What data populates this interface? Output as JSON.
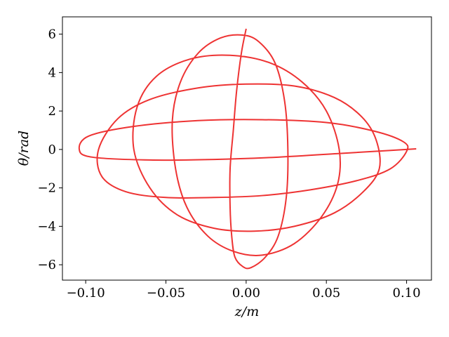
{
  "chart_data": {
    "type": "line",
    "title": "",
    "xlabel": "z/m",
    "ylabel": "θ/rad",
    "xlim": [
      -0.1145,
      0.1155
    ],
    "ylim": [
      -6.8,
      6.9
    ],
    "grid": false,
    "legend": "none",
    "series_color": "#ee3333",
    "x_ticks": [
      {
        "value": -0.1,
        "label": "−0.10"
      },
      {
        "value": -0.05,
        "label": "−0.05"
      },
      {
        "value": 0.0,
        "label": "0.00"
      },
      {
        "value": 0.05,
        "label": "0.05"
      },
      {
        "value": 0.1,
        "label": "0.10"
      }
    ],
    "y_ticks": [
      {
        "value": -6,
        "label": "−6"
      },
      {
        "value": -4,
        "label": "−4"
      },
      {
        "value": -2,
        "label": "−2"
      },
      {
        "value": 0,
        "label": "0"
      },
      {
        "value": 2,
        "label": "2"
      },
      {
        "value": 4,
        "label": "4"
      },
      {
        "value": 6,
        "label": "6"
      }
    ],
    "series": [
      {
        "x": [
          0.0,
          -0.003,
          -0.006,
          -0.008,
          -0.01,
          -0.01,
          -0.009,
          -0.007,
          -0.002,
          0.003,
          0.012,
          0.02,
          0.025,
          0.026,
          0.024,
          0.018,
          0.008,
          -0.002,
          -0.016,
          -0.03,
          -0.041,
          -0.046,
          -0.044,
          -0.037,
          -0.024,
          -0.008,
          0.01,
          0.03,
          0.047,
          0.057,
          0.058,
          0.05,
          0.035,
          0.015,
          -0.01,
          -0.035,
          -0.056,
          -0.068,
          -0.07,
          -0.06,
          -0.043,
          -0.02,
          0.005,
          0.03,
          0.055,
          0.073,
          0.083,
          0.081,
          0.072,
          0.055,
          0.03,
          0.0,
          -0.03,
          -0.06,
          -0.08,
          -0.092,
          -0.09,
          -0.075,
          -0.05,
          -0.02,
          0.01,
          0.04,
          0.07,
          0.09,
          0.1,
          0.098,
          0.08,
          0.05,
          0.01,
          -0.03,
          -0.07,
          -0.098,
          -0.104,
          -0.096,
          -0.06,
          -0.02,
          0.02,
          0.06,
          0.09,
          0.106
        ],
        "y": [
          6.28,
          5.0,
          3.0,
          1.0,
          -1.0,
          -3.0,
          -4.5,
          -5.6,
          -6.1,
          -6.15,
          -5.6,
          -4.5,
          -2.5,
          0.0,
          2.5,
          4.5,
          5.6,
          5.95,
          5.8,
          5.0,
          3.5,
          1.5,
          -1.0,
          -3.0,
          -4.5,
          -5.3,
          -5.5,
          -4.9,
          -3.5,
          -1.8,
          0.0,
          2.0,
          3.5,
          4.5,
          4.9,
          4.7,
          3.8,
          2.2,
          0.0,
          -2.0,
          -3.4,
          -4.1,
          -4.25,
          -4.0,
          -3.3,
          -2.2,
          -1.0,
          0.5,
          1.7,
          2.7,
          3.3,
          3.4,
          3.2,
          2.6,
          1.6,
          0.0,
          -1.4,
          -2.2,
          -2.5,
          -2.5,
          -2.4,
          -2.1,
          -1.6,
          -1.0,
          -0.1,
          0.4,
          0.95,
          1.4,
          1.55,
          1.5,
          1.2,
          0.7,
          0.0,
          -0.4,
          -0.55,
          -0.52,
          -0.4,
          -0.2,
          -0.05,
          0.03
        ]
      }
    ]
  }
}
